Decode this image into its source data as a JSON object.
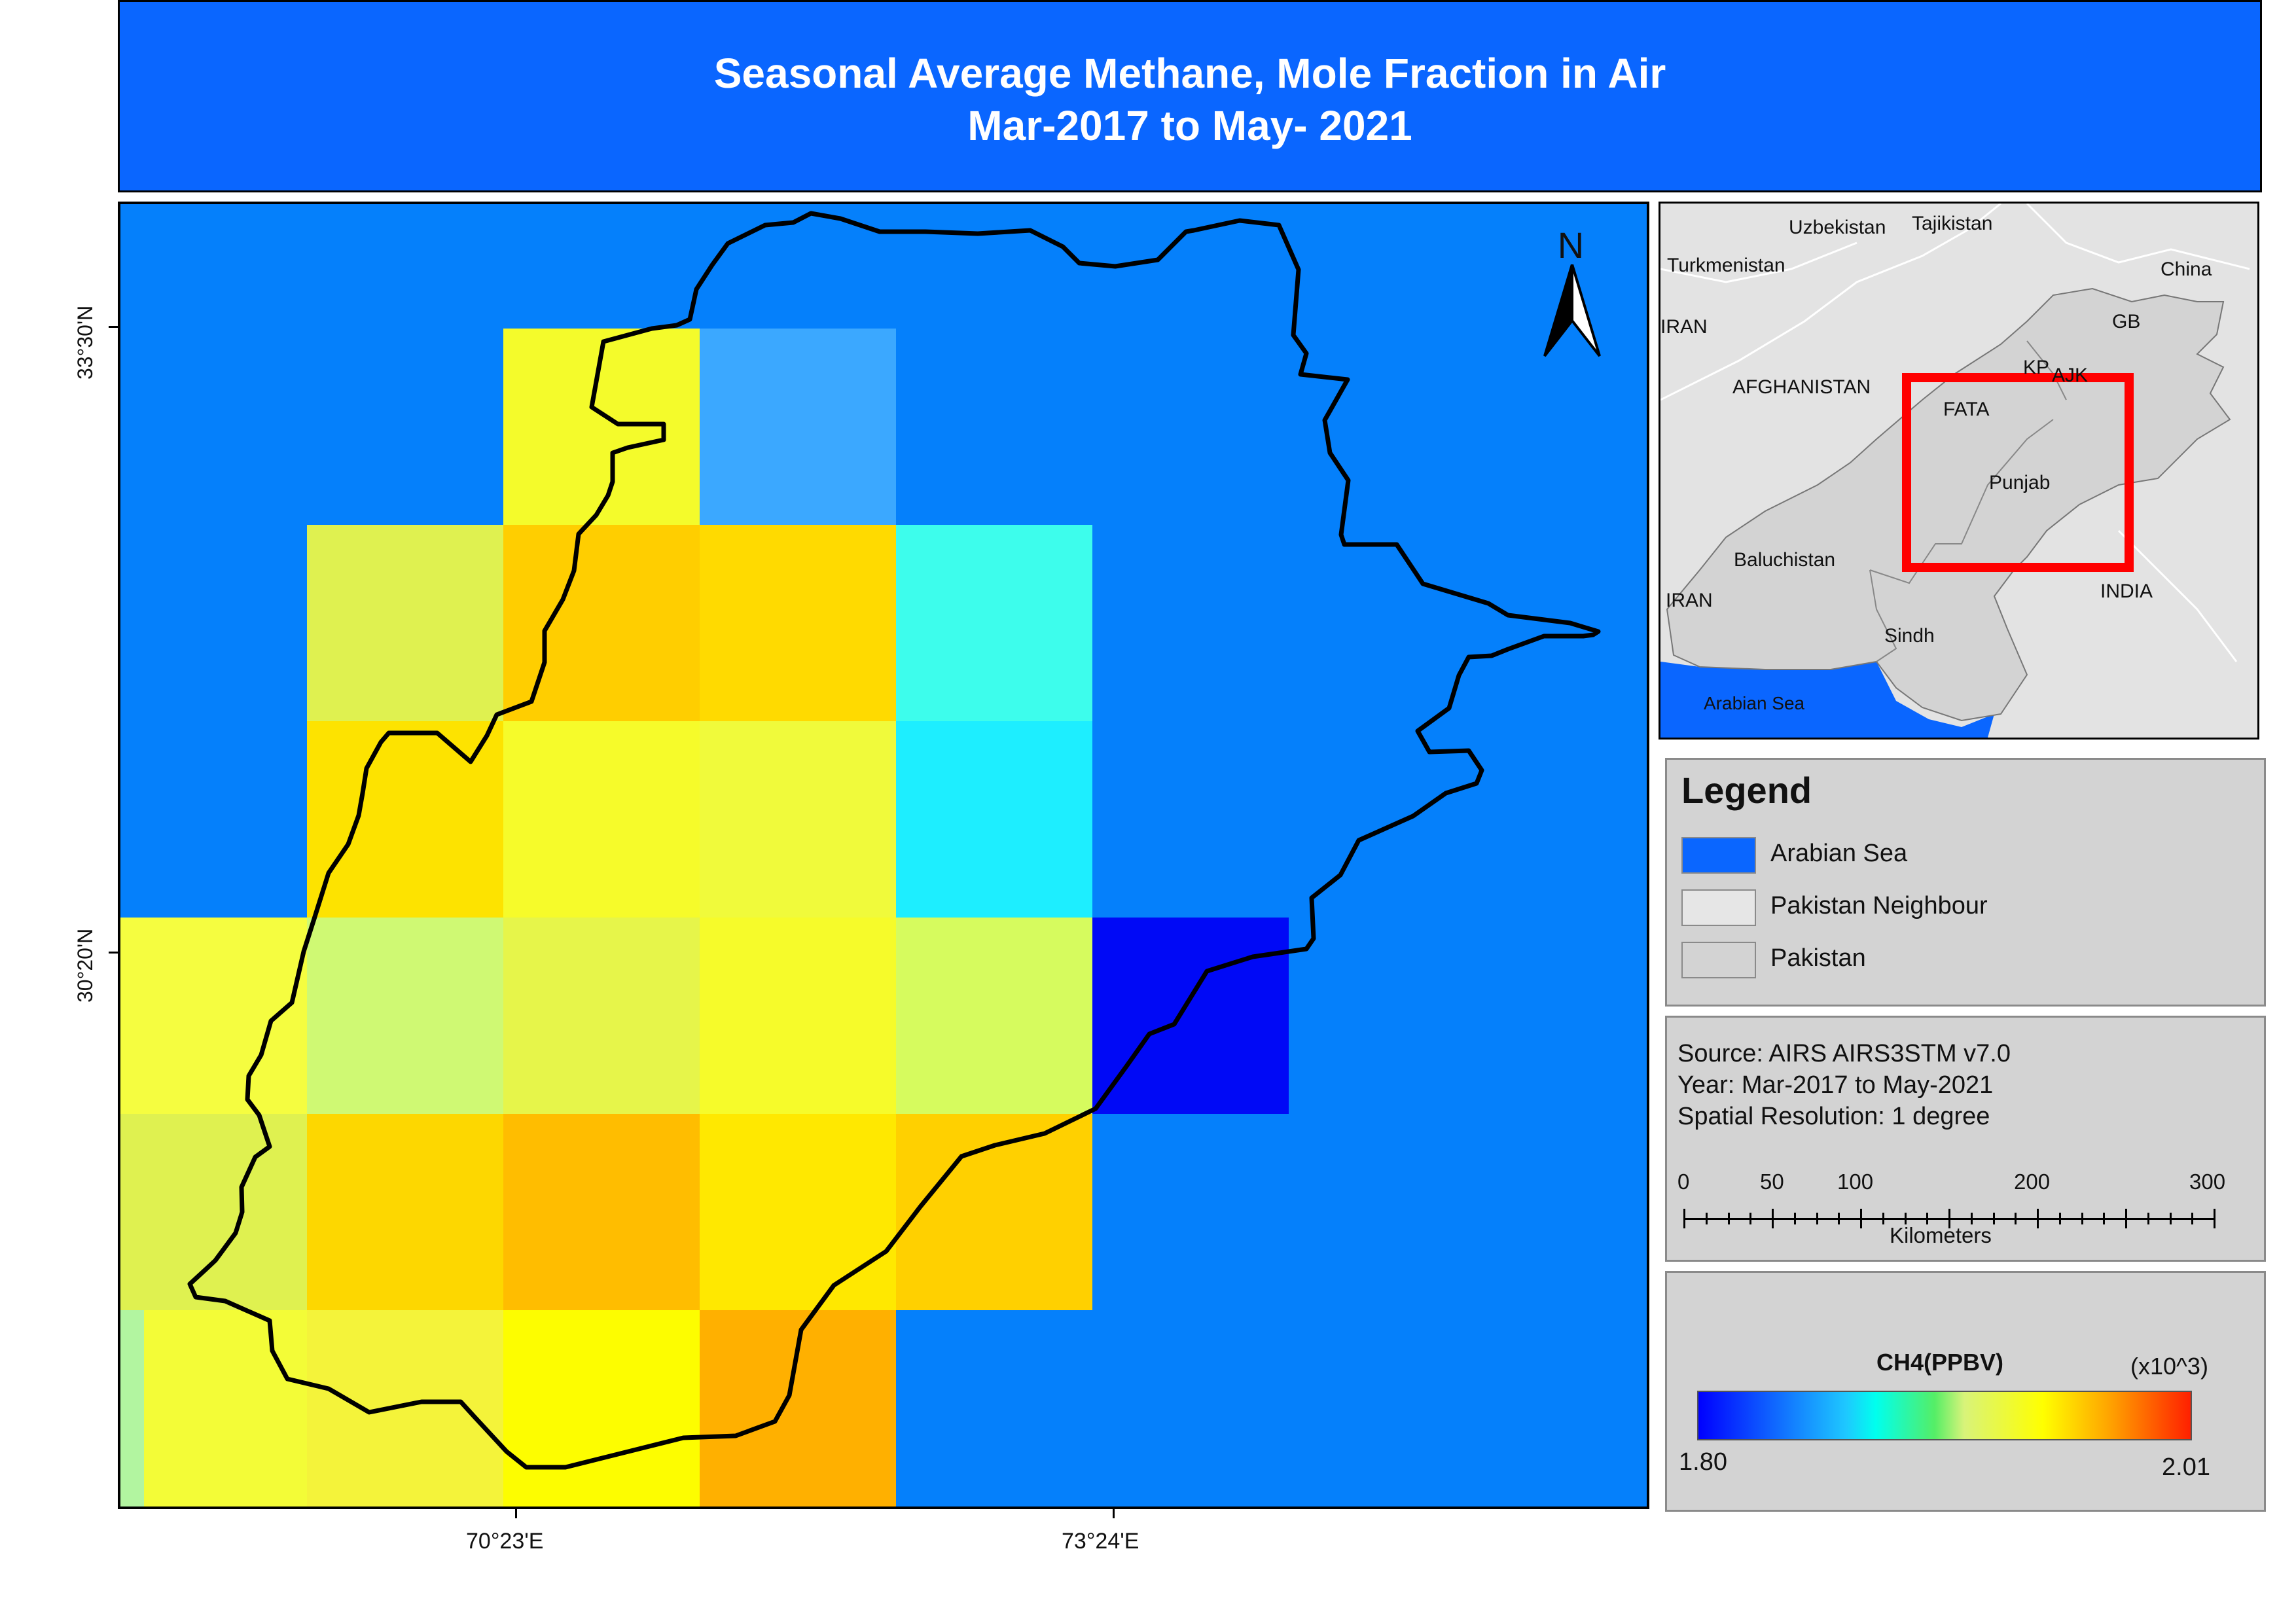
{
  "title": {
    "line1": "Seasonal Average Methane, Mole Fraction in Air",
    "line2": "Mar-2017 to May- 2021"
  },
  "map": {
    "north_arrow_label": "N",
    "lat_labels": [
      "33°30'N",
      "30°20'N"
    ],
    "lon_labels": [
      "70°23'E",
      "73°24'E"
    ],
    "grid_colors": [
      [
        null,
        null,
        "#f4fb2b",
        "#3ba8ff",
        null,
        null,
        null
      ],
      [
        null,
        "#dff150",
        "#ffce00",
        "#ffda00",
        "#3dfdec",
        null,
        null
      ],
      [
        null,
        "#fde300",
        "#f6fb2a",
        "#f0fa3b",
        "#1deeff",
        null,
        null
      ],
      [
        "#f5fd40",
        "#cff973",
        "#e6f54a",
        "#f6fb2a",
        "#d6fb5e",
        "#0009f6",
        null
      ],
      [
        "#dff150",
        "#fdd700",
        "#ffbd00",
        "#ffe800",
        "#ffd000",
        null,
        null
      ],
      [
        "#f3fc37",
        "#f4f33a",
        "#fdfd00",
        "#ffb000",
        null,
        null,
        null
      ]
    ],
    "edge_strip_color": "#b2f5a0",
    "sea_color": "#0580fb"
  },
  "inset": {
    "labels": [
      "Uzbekistan",
      "Tajikistan",
      "Turkmenistan",
      "China",
      "IRAN",
      "GB",
      "KP",
      "AJK",
      "AFGHANISTAN",
      "FATA",
      "Punjab",
      "Baluchistan",
      "IRAN",
      "INDIA",
      "Sindh",
      "Arabian Sea"
    ]
  },
  "legend": {
    "title": "Legend",
    "items": [
      {
        "label": "Arabian Sea",
        "color": "#0a66ff"
      },
      {
        "label": "Pakistan Neighbour",
        "color": "#e6e6e6"
      },
      {
        "label": "Pakistan",
        "color": "#d3d3d3"
      }
    ]
  },
  "info": {
    "source": "Source: AIRS AIRS3STM v7.0",
    "year": "Year: Mar-2017 to May-2021",
    "resolution": "Spatial Resolution: 1 degree",
    "scale_values": [
      "0",
      "50",
      "100",
      "200",
      "300"
    ],
    "scale_unit": "Kilometers"
  },
  "colorbar": {
    "title": "CH4(PPBV)",
    "multiplier": "(x10^3)",
    "min_label": "1.80",
    "max_label": "2.01",
    "min": 1.8,
    "max": 2.01
  }
}
